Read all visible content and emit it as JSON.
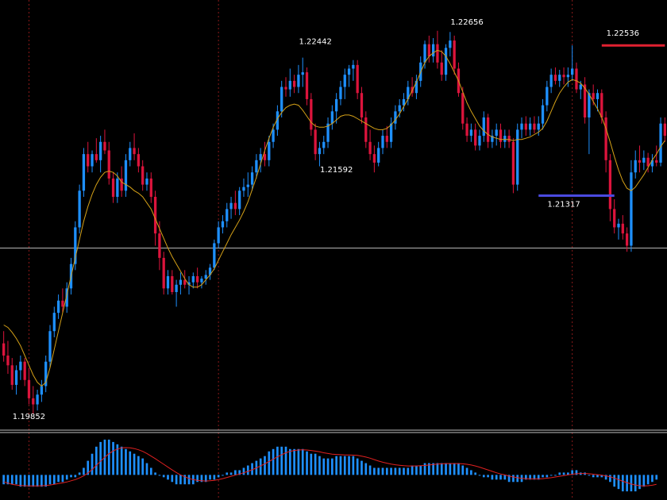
{
  "chart_data": {
    "type": "candlestick",
    "title": "",
    "xlabel": "",
    "ylabel": "",
    "ylim": [
      1.1948,
      1.2286
    ],
    "colors": {
      "background": "#000000",
      "bull": "#1e90ff",
      "bear": "#dc143c",
      "moving_average": "#d4a017",
      "macd_histogram": "#1e90ff",
      "macd_signal": "#e02020",
      "vertical_separator": "#8b1a1a",
      "horizontal_line": "#bbbbbb",
      "high_marker": "#e02030",
      "low_marker": "#4a4ae0"
    },
    "horizontal_line": 1.2088,
    "candles": [
      [
        1.201,
        1.202,
        1.1995,
        1.2
      ],
      [
        1.2,
        1.2012,
        1.1985,
        1.1992
      ],
      [
        1.1992,
        1.1998,
        1.1972,
        1.1976
      ],
      [
        1.1976,
        1.1992,
        1.1968,
        1.1988
      ],
      [
        1.1988,
        1.2,
        1.198,
        1.1995
      ],
      [
        1.1995,
        1.1998,
        1.1975,
        1.198
      ],
      [
        1.198,
        1.199,
        1.196,
        1.1965
      ],
      [
        1.1965,
        1.1975,
        1.1952,
        1.196
      ],
      [
        1.196,
        1.1972,
        1.1955,
        1.1968
      ],
      [
        1.1968,
        1.198,
        1.1962,
        1.1975
      ],
      [
        1.1975,
        1.2,
        1.197,
        1.1995
      ],
      [
        1.1995,
        1.2025,
        1.199,
        1.202
      ],
      [
        1.202,
        1.204,
        1.2015,
        1.2035
      ],
      [
        1.2035,
        1.205,
        1.203,
        1.2045
      ],
      [
        1.2045,
        1.2055,
        1.2035,
        1.204
      ],
      [
        1.204,
        1.206,
        1.2035,
        1.2055
      ],
      [
        1.2055,
        1.208,
        1.205,
        1.2075
      ],
      [
        1.2075,
        1.211,
        1.207,
        1.2105
      ],
      [
        1.2105,
        1.214,
        1.21,
        1.2135
      ],
      [
        1.2135,
        1.217,
        1.213,
        1.2165
      ],
      [
        1.2165,
        1.2175,
        1.215,
        1.2155
      ],
      [
        1.2155,
        1.2168,
        1.215,
        1.2165
      ],
      [
        1.2165,
        1.2178,
        1.2158,
        1.216
      ],
      [
        1.216,
        1.218,
        1.215,
        1.2175
      ],
      [
        1.2175,
        1.2185,
        1.2165,
        1.2168
      ],
      [
        1.2168,
        1.2175,
        1.214,
        1.2145
      ],
      [
        1.2145,
        1.215,
        1.2125,
        1.213
      ],
      [
        1.213,
        1.215,
        1.2125,
        1.2145
      ],
      [
        1.2145,
        1.2155,
        1.213,
        1.2135
      ],
      [
        1.2135,
        1.2165,
        1.213,
        1.216
      ],
      [
        1.216,
        1.2175,
        1.2155,
        1.217
      ],
      [
        1.217,
        1.2182,
        1.216,
        1.2165
      ],
      [
        1.2165,
        1.217,
        1.215,
        1.2155
      ],
      [
        1.2155,
        1.216,
        1.2135,
        1.214
      ],
      [
        1.214,
        1.215,
        1.2135,
        1.2145
      ],
      [
        1.2145,
        1.215,
        1.2125,
        1.213
      ],
      [
        1.213,
        1.2135,
        1.209,
        1.21
      ],
      [
        1.21,
        1.211,
        1.207,
        1.208
      ],
      [
        1.208,
        1.2085,
        1.205,
        1.2055
      ],
      [
        1.2055,
        1.207,
        1.205,
        1.2065
      ],
      [
        1.2065,
        1.207,
        1.205,
        1.2052
      ],
      [
        1.2052,
        1.2062,
        1.204,
        1.2058
      ],
      [
        1.2058,
        1.2068,
        1.205,
        1.2062
      ],
      [
        1.2062,
        1.207,
        1.2055,
        1.2058
      ],
      [
        1.2058,
        1.2065,
        1.205,
        1.206
      ],
      [
        1.206,
        1.2068,
        1.2055,
        1.2065
      ],
      [
        1.2065,
        1.2072,
        1.2055,
        1.206
      ],
      [
        1.206,
        1.2065,
        1.2055,
        1.2063
      ],
      [
        1.2063,
        1.207,
        1.2058,
        1.2066
      ],
      [
        1.2066,
        1.2075,
        1.2062,
        1.2072
      ],
      [
        1.2072,
        1.2095,
        1.207,
        1.2092
      ],
      [
        1.2092,
        1.211,
        1.2088,
        1.2105
      ],
      [
        1.2105,
        1.2115,
        1.21,
        1.211
      ],
      [
        1.211,
        1.2125,
        1.2105,
        1.212
      ],
      [
        1.212,
        1.213,
        1.2112,
        1.2125
      ],
      [
        1.2125,
        1.2135,
        1.2115,
        1.212
      ],
      [
        1.212,
        1.2138,
        1.2115,
        1.2135
      ],
      [
        1.2135,
        1.2145,
        1.213,
        1.2138
      ],
      [
        1.2138,
        1.215,
        1.213,
        1.214
      ],
      [
        1.214,
        1.2155,
        1.2135,
        1.215
      ],
      [
        1.215,
        1.2165,
        1.2145,
        1.216
      ],
      [
        1.216,
        1.217,
        1.215,
        1.2165
      ],
      [
        1.2165,
        1.2175,
        1.2155,
        1.216
      ],
      [
        1.216,
        1.218,
        1.2155,
        1.2175
      ],
      [
        1.2175,
        1.219,
        1.217,
        1.2185
      ],
      [
        1.2185,
        1.2205,
        1.218,
        1.22
      ],
      [
        1.22,
        1.2225,
        1.2195,
        1.222
      ],
      [
        1.222,
        1.2228,
        1.2212,
        1.2218
      ],
      [
        1.2218,
        1.2235,
        1.2212,
        1.2225
      ],
      [
        1.2225,
        1.223,
        1.2215,
        1.222
      ],
      [
        1.222,
        1.2238,
        1.2215,
        1.223
      ],
      [
        1.223,
        1.2244,
        1.222,
        1.2232
      ],
      [
        1.2232,
        1.2236,
        1.2205,
        1.221
      ],
      [
        1.221,
        1.2215,
        1.218,
        1.2185
      ],
      [
        1.2185,
        1.219,
        1.216,
        1.2165
      ],
      [
        1.2165,
        1.2175,
        1.2155,
        1.217
      ],
      [
        1.217,
        1.218,
        1.2165,
        1.2175
      ],
      [
        1.2175,
        1.2195,
        1.217,
        1.219
      ],
      [
        1.219,
        1.2205,
        1.2185,
        1.22
      ],
      [
        1.22,
        1.2215,
        1.219,
        1.221
      ],
      [
        1.221,
        1.2225,
        1.2205,
        1.222
      ],
      [
        1.222,
        1.2235,
        1.221,
        1.223
      ],
      [
        1.223,
        1.2238,
        1.222,
        1.2235
      ],
      [
        1.2235,
        1.2242,
        1.2225,
        1.2238
      ],
      [
        1.2238,
        1.2242,
        1.221,
        1.2215
      ],
      [
        1.2215,
        1.222,
        1.219,
        1.2195
      ],
      [
        1.2195,
        1.22,
        1.217,
        1.2175
      ],
      [
        1.2175,
        1.2185,
        1.216,
        1.2165
      ],
      [
        1.2165,
        1.2172,
        1.215,
        1.2158
      ],
      [
        1.2158,
        1.2175,
        1.2155,
        1.217
      ],
      [
        1.217,
        1.2185,
        1.2165,
        1.218
      ],
      [
        1.218,
        1.2188,
        1.217,
        1.2175
      ],
      [
        1.2175,
        1.2195,
        1.217,
        1.219
      ],
      [
        1.219,
        1.2205,
        1.2185,
        1.22
      ],
      [
        1.22,
        1.221,
        1.2195,
        1.2205
      ],
      [
        1.2205,
        1.2215,
        1.22,
        1.221
      ],
      [
        1.221,
        1.2225,
        1.2205,
        1.222
      ],
      [
        1.222,
        1.2228,
        1.2212,
        1.2215
      ],
      [
        1.2215,
        1.223,
        1.221,
        1.2225
      ],
      [
        1.2225,
        1.2245,
        1.222,
        1.224
      ],
      [
        1.224,
        1.2258,
        1.2235,
        1.2255
      ],
      [
        1.2255,
        1.2262,
        1.224,
        1.2245
      ],
      [
        1.2245,
        1.226,
        1.224,
        1.2255
      ],
      [
        1.2255,
        1.2266,
        1.2235,
        1.224
      ],
      [
        1.224,
        1.225,
        1.2225,
        1.223
      ],
      [
        1.223,
        1.2255,
        1.2225,
        1.2252
      ],
      [
        1.2252,
        1.2265,
        1.2245,
        1.2258
      ],
      [
        1.2258,
        1.2262,
        1.223,
        1.2235
      ],
      [
        1.2235,
        1.224,
        1.2212,
        1.2215
      ],
      [
        1.2215,
        1.222,
        1.2185,
        1.219
      ],
      [
        1.219,
        1.2195,
        1.2175,
        1.218
      ],
      [
        1.218,
        1.219,
        1.2175,
        1.2185
      ],
      [
        1.2185,
        1.219,
        1.2168,
        1.2172
      ],
      [
        1.2172,
        1.2185,
        1.2168,
        1.218
      ],
      [
        1.218,
        1.22,
        1.2175,
        1.2195
      ],
      [
        1.2195,
        1.2198,
        1.217,
        1.2175
      ],
      [
        1.2175,
        1.2185,
        1.217,
        1.218
      ],
      [
        1.218,
        1.219,
        1.2172,
        1.2185
      ],
      [
        1.2185,
        1.219,
        1.217,
        1.2175
      ],
      [
        1.2175,
        1.2185,
        1.217,
        1.218
      ],
      [
        1.218,
        1.2185,
        1.217,
        1.2175
      ],
      [
        1.2175,
        1.2178,
        1.2133,
        1.214
      ],
      [
        1.214,
        1.219,
        1.2135,
        1.2185
      ],
      [
        1.2185,
        1.2195,
        1.2178,
        1.219
      ],
      [
        1.219,
        1.2196,
        1.218,
        1.2185
      ],
      [
        1.2185,
        1.2195,
        1.218,
        1.219
      ],
      [
        1.219,
        1.2196,
        1.2182,
        1.2185
      ],
      [
        1.2185,
        1.2196,
        1.218,
        1.219
      ],
      [
        1.219,
        1.221,
        1.2185,
        1.2205
      ],
      [
        1.2205,
        1.2225,
        1.22,
        1.222
      ],
      [
        1.222,
        1.2235,
        1.2215,
        1.223
      ],
      [
        1.223,
        1.2236,
        1.2222,
        1.2225
      ],
      [
        1.2225,
        1.2234,
        1.222,
        1.223
      ],
      [
        1.223,
        1.2236,
        1.2222,
        1.2228
      ],
      [
        1.2228,
        1.2236,
        1.222,
        1.223
      ],
      [
        1.223,
        1.2254,
        1.2225,
        1.2235
      ],
      [
        1.2235,
        1.224,
        1.2215,
        1.2218
      ],
      [
        1.2218,
        1.2225,
        1.221,
        1.2222
      ],
      [
        1.2222,
        1.2228,
        1.219,
        1.2195
      ],
      [
        1.2195,
        1.2218,
        1.2165,
        1.2215
      ],
      [
        1.2215,
        1.2222,
        1.2205,
        1.221
      ],
      [
        1.221,
        1.2218,
        1.22,
        1.2215
      ],
      [
        1.2215,
        1.2218,
        1.219,
        1.2195
      ],
      [
        1.2195,
        1.22,
        1.215,
        1.216
      ],
      [
        1.216,
        1.2165,
        1.211,
        1.212
      ],
      [
        1.212,
        1.2128,
        1.21,
        1.2105
      ],
      [
        1.2105,
        1.2112,
        1.2095,
        1.2108
      ],
      [
        1.2108,
        1.2115,
        1.2095,
        1.21
      ],
      [
        1.21,
        1.2105,
        1.2085,
        1.209
      ],
      [
        1.209,
        1.216,
        1.2085,
        1.215
      ],
      [
        1.215,
        1.2168,
        1.2145,
        1.216
      ],
      [
        1.216,
        1.2172,
        1.215,
        1.2158
      ],
      [
        1.2158,
        1.2168,
        1.2152,
        1.2162
      ],
      [
        1.2162,
        1.2166,
        1.215,
        1.2155
      ],
      [
        1.2155,
        1.2165,
        1.215,
        1.216
      ],
      [
        1.216,
        1.2172,
        1.2155,
        1.2158
      ],
      [
        1.2158,
        1.2195,
        1.2155,
        1.219
      ],
      [
        1.219,
        1.2195,
        1.2175,
        1.218
      ]
    ],
    "moving_average": [
      1.2025,
      1.2023,
      1.2019,
      1.2014,
      1.2008,
      1.2,
      1.1992,
      1.1984,
      1.1978,
      1.1975,
      1.1978,
      1.199,
      1.2005,
      1.202,
      1.2035,
      1.205,
      1.2065,
      1.208,
      1.2095,
      1.211,
      1.2122,
      1.2132,
      1.214,
      1.2146,
      1.215,
      1.2151,
      1.215,
      1.2147,
      1.2142,
      1.214,
      1.2138,
      1.2135,
      1.2133,
      1.213,
      1.2125,
      1.212,
      1.2112,
      1.2104,
      1.2096,
      1.2088,
      1.2081,
      1.2075,
      1.2069,
      1.2063,
      1.2058,
      1.2056,
      1.2056,
      1.2058,
      1.2062,
      1.2066,
      1.2071,
      1.2078,
      1.2085,
      1.2092,
      1.2099,
      1.2105,
      1.2111,
      1.2118,
      1.2126,
      1.2136,
      1.2146,
      1.2157,
      1.2168,
      1.2178,
      1.2187,
      1.2194,
      1.2199,
      1.2203,
      1.2205,
      1.2206,
      1.2205,
      1.2201,
      1.2196,
      1.2191,
      1.2188,
      1.2187,
      1.2187,
      1.2188,
      1.219,
      1.2193,
      1.2196,
      1.2197,
      1.2197,
      1.2196,
      1.2194,
      1.2192,
      1.219,
      1.2188,
      1.2186,
      1.2185,
      1.2185,
      1.2186,
      1.2189,
      1.2193,
      1.2198,
      1.2204,
      1.221,
      1.2217,
      1.2224,
      1.2232,
      1.224,
      1.2245,
      1.2248,
      1.225,
      1.2249,
      1.2245,
      1.2239,
      1.2232,
      1.2225,
      1.2216,
      1.2207,
      1.22,
      1.2194,
      1.2188,
      1.2184,
      1.2181,
      1.2179,
      1.2178,
      1.2177,
      1.2177,
      1.2177,
      1.2176,
      1.2177,
      1.2177,
      1.2178,
      1.2179,
      1.2181,
      1.2183,
      1.2186,
      1.2192,
      1.22,
      1.2208,
      1.2215,
      1.222,
      1.2224,
      1.2226,
      1.2225,
      1.2223,
      1.2219,
      1.2214,
      1.2208,
      1.2202,
      1.2195,
      1.2186,
      1.2175,
      1.2163,
      1.2152,
      1.2143,
      1.2137,
      1.2135,
      1.2138,
      1.2143,
      1.2148,
      1.2154,
      1.216,
      1.2165,
      1.2171,
      1.2176
    ],
    "annotations": [
      {
        "text": "1.22656",
        "x": 110,
        "y": 1.2271
      },
      {
        "text": "1.22442",
        "x": 74,
        "y": 1.2255
      },
      {
        "text": "1.22536",
        "x": 147,
        "y": 1.2262
      },
      {
        "text": "1.21592",
        "x": 79,
        "y": 1.215
      },
      {
        "text": "1.21317",
        "x": 133,
        "y": 1.2122
      },
      {
        "text": "1.19852",
        "x": 6,
        "y": 1.1948
      }
    ],
    "high_marker": {
      "y": 1.2254,
      "x_from": 142,
      "x_to": 157
    },
    "low_marker": {
      "y": 1.2131,
      "x_from": 127,
      "x_to": 145
    },
    "vertical_separators": [
      6,
      51,
      135
    ],
    "macd": {
      "histogram": [
        -4,
        -4,
        -4,
        -4,
        -5,
        -5,
        -5,
        -5,
        -5,
        -5,
        -5,
        -4,
        -4,
        -3,
        -3,
        -2,
        -1,
        -1,
        1,
        3,
        6,
        9,
        12,
        14,
        15,
        15,
        14,
        13,
        12,
        11,
        10,
        9,
        8,
        7,
        5,
        3,
        1,
        0,
        -1,
        -2,
        -3,
        -4,
        -4,
        -4,
        -4,
        -4,
        -3,
        -3,
        -3,
        -2,
        -2,
        -1,
        0,
        1,
        1,
        2,
        2,
        3,
        4,
        5,
        6,
        7,
        8,
        10,
        11,
        12,
        12,
        12,
        11,
        11,
        11,
        11,
        10,
        9,
        9,
        8,
        7,
        7,
        7,
        8,
        8,
        8,
        8,
        8,
        7,
        6,
        5,
        4,
        3,
        3,
        3,
        3,
        3,
        3,
        3,
        3,
        3,
        4,
        4,
        4,
        5,
        5,
        5,
        5,
        5,
        5,
        5,
        5,
        5,
        4,
        3,
        2,
        1,
        0,
        -1,
        -1,
        -2,
        -2,
        -2,
        -2,
        -3,
        -3,
        -3,
        -3,
        -2,
        -2,
        -2,
        -2,
        -1,
        -1,
        0,
        0,
        1,
        1,
        1,
        2,
        2,
        1,
        1,
        0,
        -1,
        -1,
        -1,
        -2,
        -3,
        -5,
        -6,
        -7,
        -7,
        -7,
        -7,
        -6,
        -5,
        -4,
        -3,
        -2
      ],
      "signal": [
        -3,
        -3.5,
        -4,
        -4.3,
        -4.5,
        -4.6,
        -4.7,
        -4.7,
        -4.7,
        -4.6,
        -4.5,
        -4.3,
        -4,
        -3.7,
        -3.4,
        -3,
        -2.5,
        -2,
        -1.3,
        -0.4,
        0.8,
        2.3,
        4,
        5.8,
        7.5,
        9,
        10.2,
        11,
        11.5,
        11.6,
        11.5,
        11.2,
        10.7,
        10,
        9.1,
        8,
        6.9,
        5.7,
        4.5,
        3.3,
        2.1,
        1,
        0,
        -0.8,
        -1.5,
        -2,
        -2.3,
        -2.5,
        -2.6,
        -2.5,
        -2.3,
        -2,
        -1.6,
        -1.1,
        -0.6,
        -0.1,
        0.4,
        0.9,
        1.5,
        2.2,
        3,
        3.8,
        4.7,
        5.7,
        6.7,
        7.7,
        8.6,
        9.4,
        10,
        10.4,
        10.6,
        10.7,
        10.6,
        10.4,
        10.1,
        9.8,
        9.4,
        9.1,
        8.8,
        8.7,
        8.6,
        8.5,
        8.5,
        8.4,
        8.3,
        8,
        7.6,
        7.1,
        6.5,
        5.9,
        5.4,
        5,
        4.6,
        4.3,
        4.1,
        3.9,
        3.8,
        3.8,
        3.8,
        3.9,
        4,
        4.2,
        4.4,
        4.6,
        4.7,
        4.8,
        4.8,
        4.8,
        4.8,
        4.7,
        4.5,
        4.2,
        3.8,
        3.3,
        2.7,
        2.1,
        1.5,
        0.9,
        0.4,
        0,
        -0.5,
        -0.9,
        -1.2,
        -1.5,
        -1.6,
        -1.7,
        -1.7,
        -1.7,
        -1.6,
        -1.4,
        -1.2,
        -0.9,
        -0.6,
        -0.3,
        0,
        0.3,
        0.5,
        0.6,
        0.6,
        0.5,
        0.3,
        0.1,
        -0.1,
        -0.4,
        -0.8,
        -1.4,
        -2,
        -2.7,
        -3.3,
        -3.9,
        -4.3,
        -4.6,
        -4.7,
        -4.6,
        -4.4,
        -4
      ],
      "ylim": [
        -10,
        17
      ]
    }
  }
}
